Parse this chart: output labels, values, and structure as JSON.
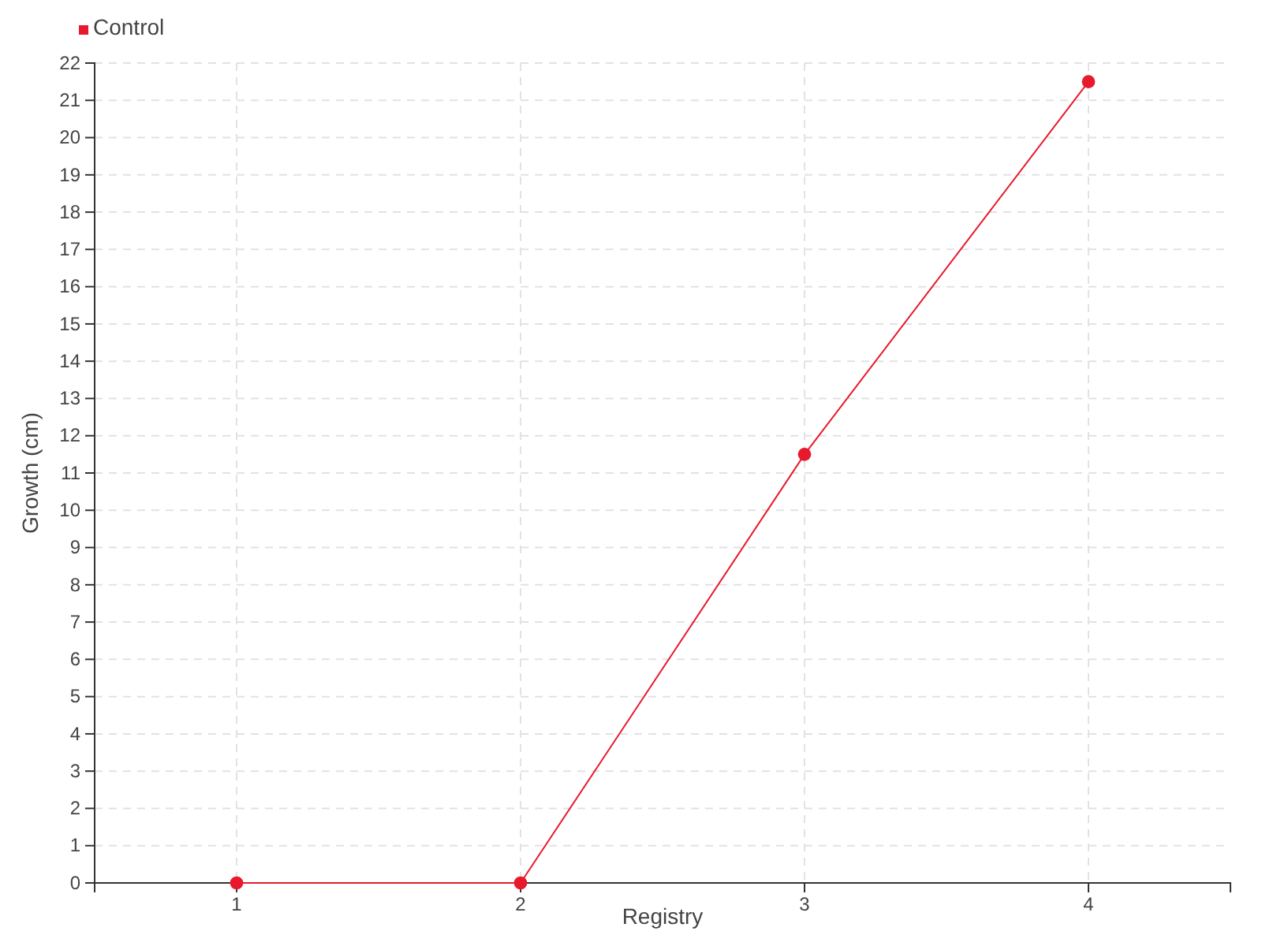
{
  "chart_data": {
    "type": "line",
    "xlabel": "Registry",
    "ylabel": "Growth (cm)",
    "x": [
      1,
      2,
      3,
      4
    ],
    "series": [
      {
        "name": "Control",
        "color": "#e8192c",
        "values": [
          0,
          0,
          11.5,
          21.5
        ]
      }
    ],
    "xlim": [
      0.5,
      4.5
    ],
    "xticks": [
      1,
      2,
      3,
      4
    ],
    "ylim": [
      0,
      22
    ],
    "yticks": [
      0,
      1,
      2,
      3,
      4,
      5,
      6,
      7,
      8,
      9,
      10,
      11,
      12,
      13,
      14,
      15,
      16,
      17,
      18,
      19,
      20,
      21,
      22
    ],
    "grid": true,
    "legend": "top left",
    "marker": "circle",
    "line_style": "solid"
  }
}
